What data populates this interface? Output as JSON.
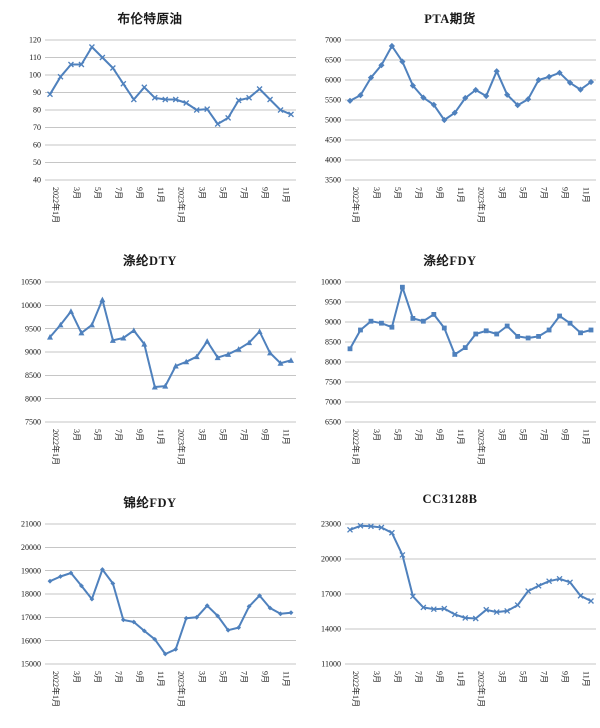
{
  "page": {
    "background": "#ffffff",
    "description_visible_text_only": true
  },
  "style": {
    "line_color": "#4F81BD",
    "grid_color": "#C6C6C6",
    "text_color": "#1A1A1A"
  },
  "axes": {
    "categories": [
      "2022年1月",
      "2022年2月",
      "2022年3月",
      "2022年4月",
      "2022年5月",
      "2022年6月",
      "2022年7月",
      "2022年8月",
      "2022年9月",
      "2022年10月",
      "2022年11月",
      "2022年12月",
      "2023年1月",
      "2023年2月",
      "2023年3月",
      "2023年4月",
      "2023年5月",
      "2023年6月",
      "2023年7月",
      "2023年8月",
      "2023年9月",
      "2023年10月",
      "2023年11月",
      "2023年12月"
    ],
    "x_tick_labels": [
      "2022年1月",
      "3月",
      "5月",
      "7月",
      "9月",
      "11月",
      "2023年1月",
      "3月",
      "5月",
      "7月",
      "9月",
      "11月"
    ],
    "x_tick_every": 2,
    "grid": true,
    "legend": "none"
  },
  "chart_data": [
    {
      "type": "line",
      "title": "布伦特原油",
      "marker": "x",
      "ylim": [
        40,
        120
      ],
      "ystep": 10,
      "values": [
        89,
        99,
        106,
        106,
        116,
        110,
        104,
        95,
        86,
        93,
        87,
        86,
        86,
        84,
        80,
        80.5,
        72,
        75.5,
        85.5,
        87,
        92,
        86,
        80,
        77.5
      ]
    },
    {
      "type": "line",
      "title": "PTA期货",
      "marker": "diamond",
      "ylim": [
        3500,
        7000
      ],
      "ystep": 500,
      "values": [
        5480,
        5620,
        6060,
        6370,
        6850,
        6460,
        5860,
        5560,
        5380,
        5000,
        5180,
        5550,
        5750,
        5600,
        6220,
        5630,
        5370,
        5520,
        6000,
        6080,
        6180,
        5930,
        5760,
        5950
      ]
    },
    {
      "type": "line",
      "title": "涤纶DTY",
      "marker": "triangle",
      "ylim": [
        7500,
        10500
      ],
      "ystep": 500,
      "values": [
        9320,
        9580,
        9870,
        9410,
        9580,
        10120,
        9250,
        9300,
        9460,
        9170,
        8250,
        8270,
        8700,
        8790,
        8900,
        9230,
        8880,
        8950,
        9060,
        9200,
        9440,
        8980,
        8760,
        8820
      ]
    },
    {
      "type": "line",
      "title": "涤纶FDY",
      "marker": "square",
      "ylim": [
        6500,
        10000
      ],
      "ystep": 500,
      "values": [
        8330,
        8800,
        9020,
        8970,
        8870,
        9870,
        9090,
        9020,
        9190,
        8850,
        8190,
        8360,
        8700,
        8780,
        8700,
        8900,
        8640,
        8600,
        8640,
        8800,
        9150,
        8970,
        8730,
        8800
      ]
    },
    {
      "type": "line",
      "title": "锦纶FDY",
      "marker": "diamond",
      "marker_size": "small",
      "ylim": [
        15000,
        21000
      ],
      "ystep": 1000,
      "values": [
        18550,
        18750,
        18900,
        18350,
        17780,
        19050,
        18450,
        16890,
        16800,
        16420,
        16060,
        15430,
        15630,
        16960,
        17000,
        17500,
        17060,
        16450,
        16560,
        17470,
        17930,
        17400,
        17150,
        17200
      ]
    },
    {
      "type": "line",
      "title": "CC3128B",
      "marker": "x",
      "ylim": [
        11000,
        23000
      ],
      "ystep": 3000,
      "values": [
        22500,
        22850,
        22800,
        22700,
        22250,
        20350,
        16800,
        15850,
        15700,
        15750,
        15250,
        14950,
        14900,
        15650,
        15450,
        15550,
        16050,
        17250,
        17700,
        18100,
        18300,
        18000,
        16850,
        16400
      ]
    }
  ]
}
